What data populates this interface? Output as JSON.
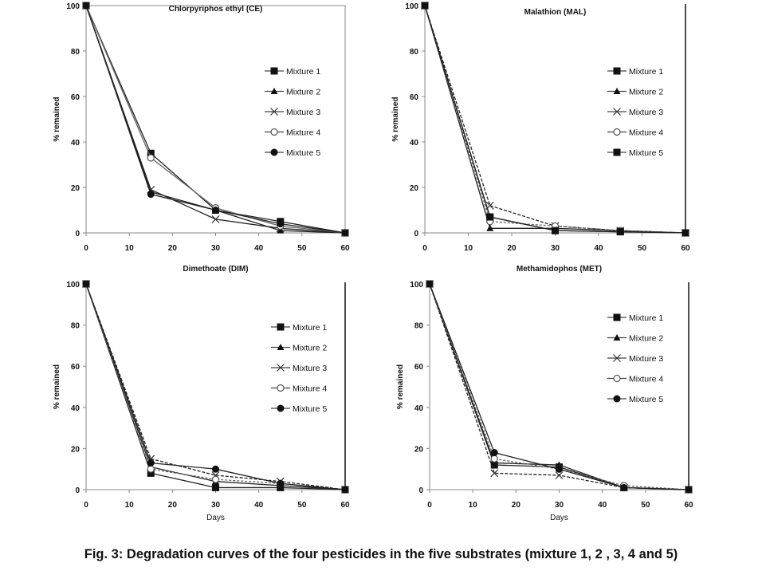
{
  "caption": "Fig. 3: Degradation curves of the four pesticides in the five substrates (mixture 1, 2 , 3, 4 and 5)",
  "chart_data": [
    {
      "type": "line",
      "title": "Chlorpyriphos ethyl (CE)",
      "xlabel": "",
      "ylabel": "% remained",
      "x": [
        0,
        15,
        30,
        45,
        60
      ],
      "xlim": [
        0,
        60
      ],
      "ylim": [
        0,
        100
      ],
      "xticks": [
        0,
        10,
        20,
        30,
        40,
        50,
        60
      ],
      "yticks": [
        0,
        20,
        40,
        60,
        80,
        100
      ],
      "legend": "right",
      "series": [
        {
          "name": "Mixture 1",
          "marker": "square",
          "values": [
            100,
            35,
            10,
            5,
            0
          ]
        },
        {
          "name": "Mixture 2",
          "marker": "triangle",
          "values": [
            100,
            18,
            10,
            1,
            0
          ]
        },
        {
          "name": "Mixture 3",
          "marker": "x",
          "values": [
            100,
            19,
            6,
            2,
            0
          ]
        },
        {
          "name": "Mixture 4",
          "marker": "circle-open",
          "values": [
            100,
            33,
            11,
            3,
            0
          ]
        },
        {
          "name": "Mixture 5",
          "marker": "circle",
          "values": [
            100,
            17,
            10,
            4,
            0
          ]
        }
      ]
    },
    {
      "type": "line",
      "title": "Malathion (MAL)",
      "xlabel": "",
      "ylabel": "% remained",
      "x": [
        0,
        15,
        30,
        45,
        60
      ],
      "xlim": [
        0,
        60
      ],
      "ylim": [
        0,
        100
      ],
      "xticks": [
        0,
        10,
        20,
        30,
        40,
        50,
        60
      ],
      "yticks": [
        0,
        20,
        40,
        60,
        80,
        100
      ],
      "legend": "right",
      "series": [
        {
          "name": "Mixture 1",
          "marker": "square",
          "values": [
            100,
            7,
            1,
            0.5,
            0
          ]
        },
        {
          "name": "Mixture 2",
          "marker": "triangle",
          "values": [
            100,
            2,
            2,
            1,
            0
          ]
        },
        {
          "name": "Mixture 3",
          "marker": "x",
          "values": [
            100,
            12,
            3,
            1,
            0
          ]
        },
        {
          "name": "Mixture 4",
          "marker": "circle-open",
          "values": [
            100,
            5,
            3,
            1,
            0
          ]
        },
        {
          "name": "Mixture 5",
          "marker": "square",
          "values": [
            100,
            7,
            1,
            0.5,
            0
          ]
        }
      ]
    },
    {
      "type": "line",
      "title": "Dimethoate (DIM)",
      "xlabel": "Days",
      "ylabel": "% remained",
      "x": [
        0,
        15,
        30,
        45,
        60
      ],
      "xlim": [
        0,
        60
      ],
      "ylim": [
        0,
        100
      ],
      "xticks": [
        0,
        10,
        20,
        30,
        40,
        50,
        60
      ],
      "yticks": [
        0,
        20,
        40,
        60,
        80,
        100
      ],
      "legend": "right",
      "series": [
        {
          "name": "Mixture 1",
          "marker": "square",
          "values": [
            100,
            8,
            1,
            1,
            0
          ]
        },
        {
          "name": "Mixture 2",
          "marker": "triangle",
          "values": [
            100,
            11,
            4,
            2,
            0
          ]
        },
        {
          "name": "Mixture 3",
          "marker": "x",
          "values": [
            100,
            15,
            7,
            4,
            0
          ]
        },
        {
          "name": "Mixture 4",
          "marker": "circle-open",
          "values": [
            100,
            10,
            5,
            3,
            0
          ]
        },
        {
          "name": "Mixture 5",
          "marker": "circle",
          "values": [
            100,
            13,
            10,
            3,
            0
          ]
        }
      ]
    },
    {
      "type": "line",
      "title": "Methamidophos (MET)",
      "xlabel": "Days",
      "ylabel": "% remained",
      "x": [
        0,
        15,
        30,
        45,
        60
      ],
      "xlim": [
        0,
        60
      ],
      "ylim": [
        0,
        100
      ],
      "xticks": [
        0,
        10,
        20,
        30,
        40,
        50,
        60
      ],
      "yticks": [
        0,
        20,
        40,
        60,
        80,
        100
      ],
      "legend": "right",
      "series": [
        {
          "name": "Mixture 1",
          "marker": "square",
          "values": [
            100,
            12,
            11,
            1,
            0
          ]
        },
        {
          "name": "Mixture 2",
          "marker": "triangle",
          "values": [
            100,
            13,
            12,
            1,
            0
          ]
        },
        {
          "name": "Mixture 3",
          "marker": "x",
          "values": [
            100,
            8,
            7,
            1,
            0
          ]
        },
        {
          "name": "Mixture 4",
          "marker": "circle-open",
          "values": [
            100,
            15,
            10,
            2,
            0
          ]
        },
        {
          "name": "Mixture 5",
          "marker": "circle",
          "values": [
            100,
            18,
            10,
            1,
            0
          ]
        }
      ]
    }
  ]
}
